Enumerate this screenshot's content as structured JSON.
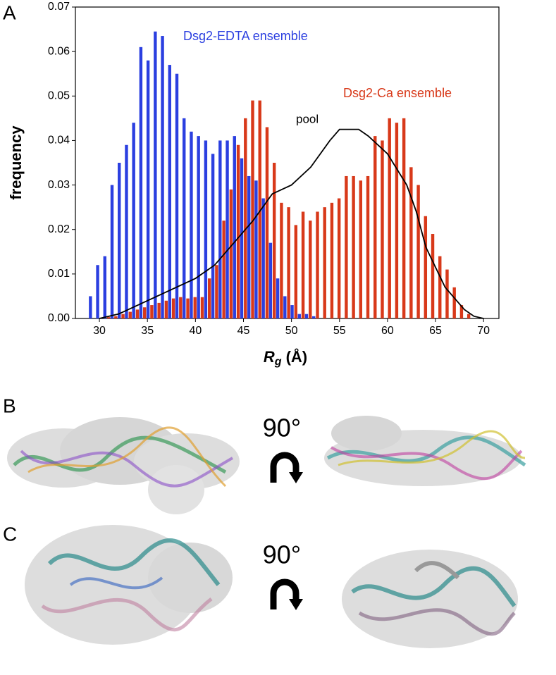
{
  "panel_labels": [
    "A",
    "B",
    "C"
  ],
  "rotation_labels": [
    "90°",
    "90°"
  ],
  "chart_data": {
    "type": "bar",
    "ylabel": "frequency",
    "xlabel_symbol": "R",
    "xlabel_subscript": "g",
    "xlabel_unit": "(Å)",
    "xlim": [
      27.5,
      71.6
    ],
    "ylim": [
      0,
      0.07
    ],
    "xticks": [
      30,
      35,
      40,
      45,
      50,
      55,
      60,
      65,
      70
    ],
    "yticks": [
      {
        "value": 0,
        "label": "0.00"
      },
      0.01,
      0.02,
      0.03,
      0.04,
      0.05,
      0.06,
      0.07
    ],
    "x": [
      29.25,
      30,
      30.75,
      31.5,
      32.25,
      33,
      33.75,
      34.5,
      35.25,
      36,
      36.75,
      37.5,
      38.25,
      39,
      39.75,
      40.5,
      41.25,
      42,
      42.75,
      43.5,
      44.25,
      45,
      45.75,
      46.5,
      47.25,
      48,
      48.75,
      49.5,
      50.25,
      51,
      51.75,
      52.5,
      53.25,
      54,
      54.75,
      55.5,
      56.25,
      57,
      57.75,
      58.5,
      59.25,
      60,
      60.75,
      61.5,
      62.25,
      63,
      63.75,
      64.5,
      65.25,
      66,
      66.75,
      67.5,
      68.25
    ],
    "series": [
      {
        "name": "Dsg2-EDTA ensemble",
        "color": "#2b3fe0",
        "values": [
          0.005,
          0.012,
          0.014,
          0.03,
          0.035,
          0.039,
          0.044,
          0.061,
          0.058,
          0.0645,
          0.0635,
          0.057,
          0.055,
          0.045,
          0.042,
          0.041,
          0.04,
          0.037,
          0.04,
          0.04,
          0.041,
          0.036,
          0.032,
          0.031,
          0.027,
          0.017,
          0.009,
          0.005,
          0.003,
          0.001,
          0.001,
          0.0005,
          0,
          0,
          0,
          0,
          0,
          0,
          0,
          0,
          0,
          0,
          0,
          0,
          0,
          0,
          0,
          0,
          0,
          0,
          0,
          0,
          0
        ]
      },
      {
        "name": "Dsg2-Ca ensemble",
        "color": "#d8391a",
        "values": [
          0,
          0,
          0.0003,
          0.0005,
          0.001,
          0.0015,
          0.002,
          0.0025,
          0.003,
          0.0035,
          0.004,
          0.0045,
          0.0048,
          0.0045,
          0.0048,
          0.0048,
          0.009,
          0.012,
          0.022,
          0.029,
          0.039,
          0.045,
          0.049,
          0.049,
          0.043,
          0.035,
          0.026,
          0.025,
          0.021,
          0.024,
          0.022,
          0.024,
          0.025,
          0.026,
          0.027,
          0.032,
          0.032,
          0.031,
          0.032,
          0.041,
          0.04,
          0.045,
          0.044,
          0.045,
          0.034,
          0.03,
          0.023,
          0.019,
          0.014,
          0.011,
          0.007,
          0.003,
          0.001
        ]
      }
    ],
    "pool": {
      "name": "pool",
      "color": "#000000",
      "x": [
        30,
        32,
        34,
        36,
        38,
        40,
        42,
        44,
        46,
        48,
        50,
        52,
        54,
        55,
        57,
        58,
        60,
        62,
        63,
        64,
        66,
        68,
        69,
        70
      ],
      "values": [
        0,
        0.001,
        0.003,
        0.005,
        0.007,
        0.009,
        0.012,
        0.017,
        0.022,
        0.028,
        0.03,
        0.034,
        0.04,
        0.0425,
        0.0425,
        0.041,
        0.037,
        0.03,
        0.024,
        0.016,
        0.007,
        0.002,
        0.0005,
        0
      ]
    }
  }
}
